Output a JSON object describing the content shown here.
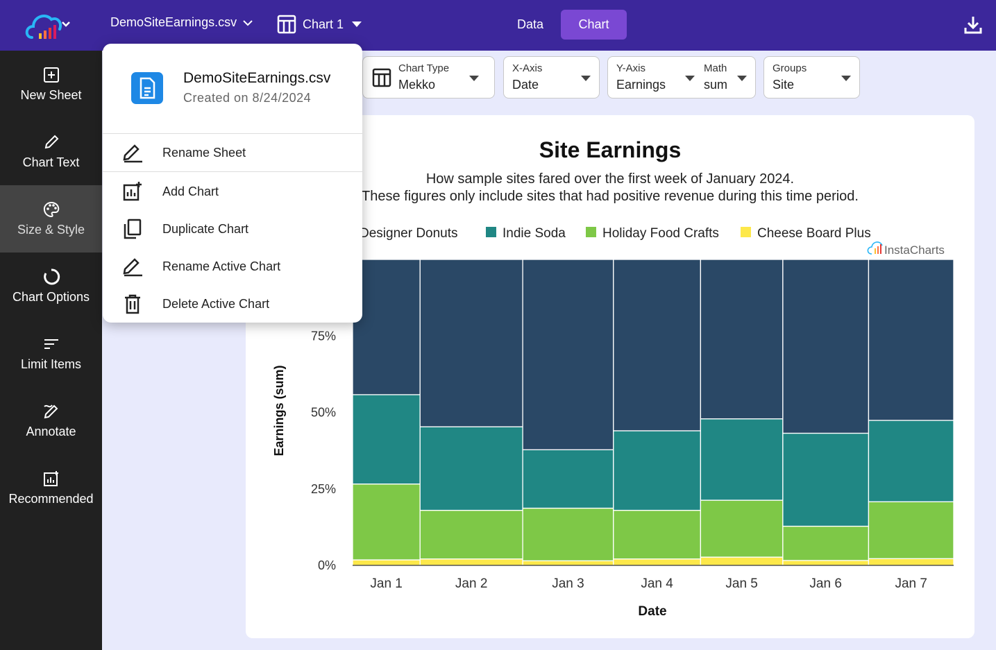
{
  "topbar": {
    "file_name": "DemoSiteEarnings.csv",
    "chart_name": "Chart 1",
    "tabs": {
      "data": "Data",
      "chart": "Chart"
    }
  },
  "sidebar": {
    "items": [
      {
        "label": "New Sheet",
        "icon": "plus-square-icon"
      },
      {
        "label": "Chart Text",
        "icon": "pencil-icon"
      },
      {
        "label": "Size & Style",
        "icon": "palette-icon"
      },
      {
        "label": "Chart Options",
        "icon": "circle-icon"
      },
      {
        "label": "Limit Items",
        "icon": "filter-lines-icon"
      },
      {
        "label": "Annotate",
        "icon": "annotate-icon"
      },
      {
        "label": "Recommended",
        "icon": "chart-plus-icon"
      }
    ],
    "active_index": 2
  },
  "controls": {
    "chart_type": {
      "label": "Chart Type",
      "value": "Mekko"
    },
    "x_axis": {
      "label": "X-Axis",
      "value": "Date"
    },
    "y_axis": {
      "label": "Y-Axis",
      "value": "Earnings"
    },
    "math": {
      "label": "Math",
      "value": "sum"
    },
    "groups": {
      "label": "Groups",
      "value": "Site"
    }
  },
  "popup": {
    "file_name": "DemoSiteEarnings.csv",
    "created": "Created on 8/24/2024",
    "items": [
      {
        "label": "Rename Sheet",
        "icon": "rename-icon"
      },
      {
        "label": "Add Chart",
        "icon": "add-chart-icon"
      },
      {
        "label": "Duplicate Chart",
        "icon": "duplicate-icon"
      },
      {
        "label": "Rename Active Chart",
        "icon": "rename-icon"
      },
      {
        "label": "Delete Active Chart",
        "icon": "trash-icon"
      }
    ]
  },
  "colors": {
    "topbar": "#3c279b",
    "accent": "#7a48d3",
    "sidebar": "#212121"
  },
  "chart_data": {
    "type": "bar",
    "subtype": "mekko",
    "title": "Site Earnings",
    "subtitle_lines": [
      "How sample sites fared over the first week of January 2024.",
      "These figures only include sites that had positive revenue during this time period."
    ],
    "watermark": "InstaCharts",
    "xlabel": "Date",
    "ylabel": "Earnings (sum)",
    "yticks": [
      "0%",
      "25%",
      "50%",
      "75%"
    ],
    "categories": [
      "Jan 1",
      "Jan 2",
      "Jan 3",
      "Jan 4",
      "Jan 5",
      "Jan 6",
      "Jan 7"
    ],
    "column_weights": [
      96,
      146,
      129,
      124,
      117,
      122,
      121
    ],
    "series": [
      {
        "name": "Cheese Board Plus",
        "color": "#fde84a",
        "values": [
          1.8,
          2.1,
          1.5,
          2.1,
          2.7,
          1.6,
          2.2
        ]
      },
      {
        "name": "Holiday Food Crafts",
        "color": "#7ec847",
        "values": [
          24.8,
          15.9,
          17.2,
          15.9,
          18.6,
          11.2,
          18.6
        ]
      },
      {
        "name": "Indie Soda",
        "color": "#208784",
        "values": [
          29.2,
          27.3,
          19.1,
          26.0,
          26.6,
          30.4,
          26.6
        ]
      },
      {
        "name": "Designer Donuts",
        "color": "#2a4866",
        "values": [
          44.2,
          54.7,
          62.2,
          56.0,
          52.1,
          56.8,
          52.6
        ]
      }
    ],
    "legend": [
      "Designer Donuts",
      "Indie Soda",
      "Holiday Food Crafts",
      "Cheese Board Plus"
    ],
    "ylim": [
      0,
      100
    ]
  }
}
